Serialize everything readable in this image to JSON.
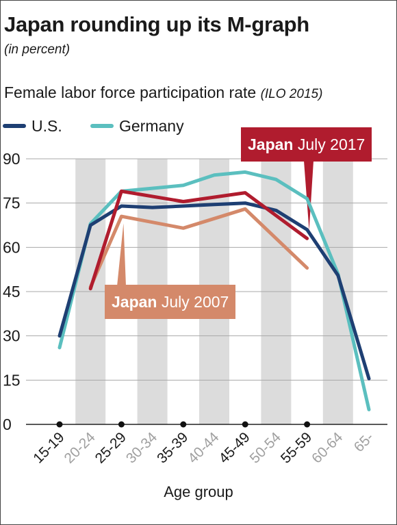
{
  "header": {
    "title": "Japan rounding up its M-graph",
    "subtitle": "(in percent)"
  },
  "chart_data": {
    "type": "line",
    "title": "Japan rounding up its M-graph",
    "subtitle": "(in percent)",
    "heading": "Female labor force participation rate",
    "source_note": "(ILO 2015)",
    "xlabel": "Age group",
    "ylabel": "",
    "ylim": [
      0,
      90
    ],
    "yticks": [
      0,
      15,
      30,
      45,
      60,
      75,
      90
    ],
    "grid": true,
    "categories": [
      "15-19",
      "20-24",
      "25-29",
      "30-34",
      "35-39",
      "40-44",
      "45-49",
      "50-54",
      "55-59",
      "60-64",
      "65-"
    ],
    "highlighted_categories": [
      "15-19",
      "25-29",
      "35-39",
      "45-49",
      "55-59"
    ],
    "shaded_categories": [
      "20-24",
      "30-34",
      "40-44",
      "50-54",
      "60-64"
    ],
    "series": [
      {
        "name": "Germany",
        "color": "#5bbfbf",
        "values": [
          26,
          68,
          79,
          80,
          81,
          84.5,
          85.5,
          83,
          76.5,
          51,
          5
        ]
      },
      {
        "name": "U.S.",
        "color": "#1e3f73",
        "values": [
          30,
          67.5,
          74,
          73.5,
          74,
          74.5,
          75,
          72.5,
          66,
          50.5,
          15.5
        ]
      },
      {
        "name": "Japan July 2007",
        "color": "#d4896a",
        "values": [
          null,
          46.5,
          70.5,
          null,
          66.5,
          null,
          73,
          null,
          53,
          null,
          null
        ]
      },
      {
        "name": "Japan July 2017",
        "color": "#b01c2e",
        "values": [
          null,
          46,
          79,
          null,
          75.5,
          null,
          78.5,
          null,
          63,
          null,
          null
        ]
      }
    ],
    "legend": {
      "placement": "top-left",
      "entries": [
        "U.S.",
        "Germany"
      ]
    },
    "annotations": [
      {
        "bold": "Japan",
        "text": " July 2017",
        "color": "#b01c2e",
        "series": "Japan July 2017"
      },
      {
        "bold": "Japan",
        "text": " July 2007",
        "color": "#d4896a",
        "series": "Japan July 2007"
      }
    ]
  }
}
